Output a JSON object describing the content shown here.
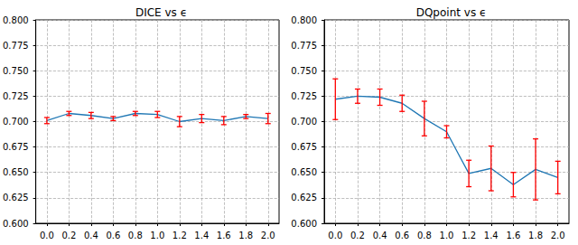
{
  "chart_data": [
    {
      "type": "line",
      "title": "DICE vs ϵ",
      "x": [
        0.0,
        0.2,
        0.4,
        0.6,
        0.8,
        1.0,
        1.2,
        1.4,
        1.6,
        1.8,
        2.0
      ],
      "series": [
        {
          "color": "#1f77b4",
          "values": [
            0.701,
            0.708,
            0.706,
            0.703,
            0.708,
            0.707,
            0.7,
            0.703,
            0.701,
            0.705,
            0.703
          ],
          "errors": [
            0.003,
            0.002,
            0.003,
            0.002,
            0.002,
            0.003,
            0.005,
            0.004,
            0.004,
            0.002,
            0.005
          ]
        }
      ],
      "xlim": [
        -0.1,
        2.1
      ],
      "xticks": [
        {
          "value": 0,
          "label": "0.0"
        },
        {
          "value": 0.2,
          "label": "0.2"
        },
        {
          "value": 0.4,
          "label": "0.4"
        },
        {
          "value": 0.6,
          "label": "0.6"
        },
        {
          "value": 0.8,
          "label": "0.8"
        },
        {
          "value": 1,
          "label": "1.0"
        },
        {
          "value": 1.2,
          "label": "1.2"
        },
        {
          "value": 1.4,
          "label": "1.4"
        },
        {
          "value": 1.6,
          "label": "1.6"
        },
        {
          "value": 1.8,
          "label": "1.8"
        },
        {
          "value": 2,
          "label": "2.0"
        }
      ],
      "ylim": [
        0.6,
        0.8
      ],
      "yticks": [
        {
          "value": 0.6,
          "label": "0.600"
        },
        {
          "value": 0.625,
          "label": "0.625"
        },
        {
          "value": 0.65,
          "label": "0.650"
        },
        {
          "value": 0.675,
          "label": "0.675"
        },
        {
          "value": 0.7,
          "label": "0.700"
        },
        {
          "value": 0.725,
          "label": "0.725"
        },
        {
          "value": 0.75,
          "label": "0.750"
        },
        {
          "value": 0.775,
          "label": "0.775"
        },
        {
          "value": 0.8,
          "label": "0.800"
        }
      ],
      "grid": true
    },
    {
      "type": "line",
      "title": "DQpoint vs ϵ",
      "x": [
        0.0,
        0.2,
        0.4,
        0.6,
        0.8,
        1.0,
        1.2,
        1.4,
        1.6,
        1.8,
        2.0
      ],
      "series": [
        {
          "color": "#1f77b4",
          "values": [
            0.722,
            0.725,
            0.724,
            0.718,
            0.703,
            0.69,
            0.649,
            0.654,
            0.638,
            0.653,
            0.645
          ],
          "errors": [
            0.02,
            0.007,
            0.008,
            0.008,
            0.017,
            0.006,
            0.013,
            0.022,
            0.012,
            0.03,
            0.016
          ]
        }
      ],
      "xlim": [
        -0.1,
        2.1
      ],
      "xticks": [
        {
          "value": 0,
          "label": "0.0"
        },
        {
          "value": 0.2,
          "label": "0.2"
        },
        {
          "value": 0.4,
          "label": "0.4"
        },
        {
          "value": 0.6,
          "label": "0.6"
        },
        {
          "value": 0.8,
          "label": "0.8"
        },
        {
          "value": 1,
          "label": "1.0"
        },
        {
          "value": 1.2,
          "label": "1.2"
        },
        {
          "value": 1.4,
          "label": "1.4"
        },
        {
          "value": 1.6,
          "label": "1.6"
        },
        {
          "value": 1.8,
          "label": "1.8"
        },
        {
          "value": 2,
          "label": "2.0"
        }
      ],
      "ylim": [
        0.6,
        0.8
      ],
      "yticks": [
        {
          "value": 0.6,
          "label": "0.600"
        },
        {
          "value": 0.625,
          "label": "0.625"
        },
        {
          "value": 0.65,
          "label": "0.650"
        },
        {
          "value": 0.675,
          "label": "0.675"
        },
        {
          "value": 0.7,
          "label": "0.700"
        },
        {
          "value": 0.725,
          "label": "0.725"
        },
        {
          "value": 0.75,
          "label": "0.750"
        },
        {
          "value": 0.775,
          "label": "0.775"
        },
        {
          "value": 0.8,
          "label": "0.800"
        }
      ],
      "grid": true
    }
  ]
}
